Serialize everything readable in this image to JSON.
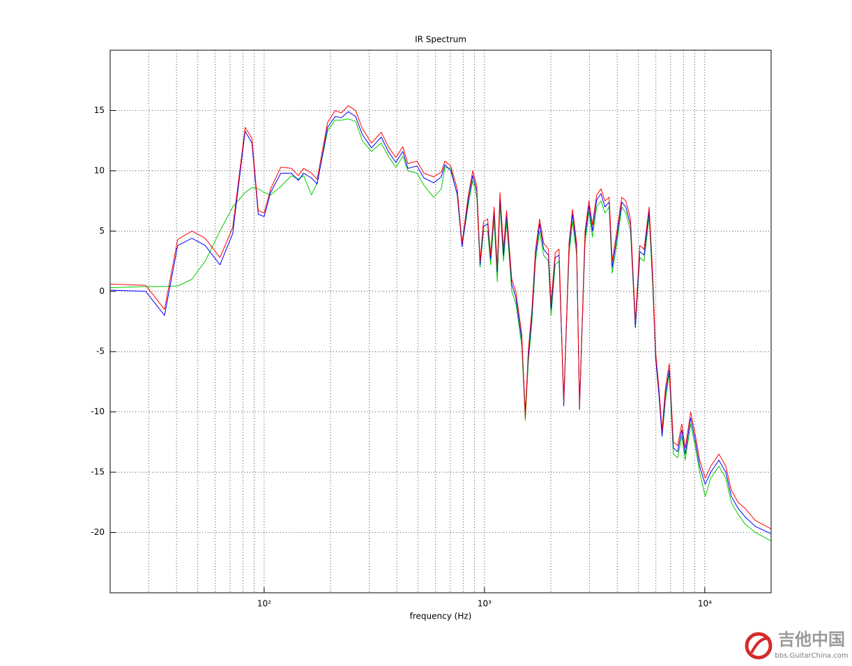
{
  "chart_data": {
    "type": "line",
    "title": "IR Spectrum",
    "x_label": "frequency (Hz)",
    "x": [
      20,
      29,
      35.3,
      40.5,
      47,
      54,
      63,
      72,
      82,
      88,
      94,
      100,
      107,
      119,
      133,
      143,
      151,
      164,
      174,
      194,
      210,
      224,
      241,
      260,
      279,
      307,
      340,
      366,
      396,
      426,
      449,
      494,
      531,
      588,
      637,
      661,
      703,
      752,
      791,
      845,
      885,
      923,
      955,
      990,
      1034,
      1066,
      1106,
      1143,
      1176,
      1220,
      1260,
      1330,
      1388,
      1476,
      1532,
      1580,
      1642,
      1705,
      1780,
      1855,
      1950,
      2006,
      2093,
      2180,
      2290,
      2420,
      2510,
      2620,
      2700,
      2860,
      2980,
      3090,
      3230,
      3380,
      3520,
      3680,
      3800,
      3990,
      4200,
      4380,
      4600,
      4840,
      5070,
      5300,
      5590,
      5800,
      5980,
      6190,
      6400,
      6630,
      6900,
      7200,
      7530,
      7860,
      8150,
      8630,
      9070,
      9480,
      10040,
      10640,
      11590,
      12450,
      13190,
      14170,
      15230,
      16960,
      20000
    ],
    "series": [
      {
        "color": "#ff0000",
        "values": [
          0.6,
          0.5,
          -1.5,
          4.3,
          5.0,
          4.4,
          2.8,
          5.3,
          13.6,
          12.7,
          6.7,
          6.5,
          8.5,
          10.3,
          10.2,
          9.6,
          10.2,
          9.8,
          9.3,
          14.0,
          15.0,
          14.8,
          15.4,
          15.0,
          13.5,
          12.3,
          13.2,
          12.0,
          11.1,
          12.0,
          10.6,
          10.8,
          9.8,
          9.5,
          9.9,
          10.8,
          10.4,
          8.5,
          4.0,
          8.0,
          10.0,
          8.7,
          2.5,
          5.8,
          6.0,
          3.0,
          7.0,
          2.0,
          8.2,
          3.5,
          6.7,
          1.0,
          0.0,
          -3.5,
          -10.5,
          -5.0,
          -1.5,
          3.5,
          6.0,
          4.0,
          3.5,
          -1.0,
          3.2,
          3.5,
          -9.2,
          4.0,
          6.8,
          4.0,
          -9.5,
          5.0,
          7.5,
          5.5,
          8.0,
          8.5,
          7.5,
          7.8,
          2.5,
          5.0,
          7.8,
          7.5,
          6.0,
          -2.5,
          3.8,
          3.5,
          7.0,
          1.5,
          -5.0,
          -8.0,
          -11.5,
          -8.0,
          -6.0,
          -12.5,
          -12.8,
          -11.0,
          -13.0,
          -10.0,
          -12.0,
          -14.0,
          -15.5,
          -14.5,
          -13.5,
          -14.5,
          -16.5,
          -17.5,
          -18.0,
          -19.0,
          -19.7
        ]
      },
      {
        "color": "#0000ff",
        "values": [
          0.1,
          0.0,
          -2.0,
          3.8,
          4.4,
          3.8,
          2.2,
          4.8,
          13.3,
          12.3,
          6.4,
          6.2,
          8.2,
          9.8,
          9.8,
          9.2,
          9.8,
          9.4,
          8.9,
          13.6,
          14.5,
          14.4,
          14.9,
          14.5,
          13.0,
          11.9,
          12.8,
          11.6,
          10.7,
          11.6,
          10.2,
          10.4,
          9.4,
          9.0,
          9.5,
          10.5,
          10.0,
          8.1,
          3.7,
          7.6,
          9.6,
          8.3,
          2.2,
          5.4,
          5.6,
          2.7,
          6.6,
          1.6,
          7.8,
          3.0,
          6.3,
          0.6,
          -0.5,
          -4.0,
          -10.0,
          -5.5,
          -2.0,
          3.0,
          5.6,
          3.5,
          3.0,
          -1.5,
          2.8,
          3.0,
          -9.5,
          3.6,
          6.4,
          3.5,
          -9.8,
          4.5,
          7.1,
          5.0,
          7.6,
          8.1,
          7.0,
          7.4,
          2.0,
          4.5,
          7.4,
          7.0,
          5.5,
          -3.0,
          3.3,
          3.0,
          6.6,
          1.0,
          -5.5,
          -8.5,
          -12.0,
          -8.5,
          -6.5,
          -13.0,
          -13.3,
          -11.5,
          -13.5,
          -10.5,
          -12.5,
          -14.5,
          -16.0,
          -15.0,
          -14.0,
          -15.0,
          -17.0,
          -18.0,
          -18.7,
          -19.5,
          -20.1
        ]
      },
      {
        "color": "#00cc00",
        "values": [
          0.3,
          0.4,
          0.4,
          0.45,
          1.0,
          2.5,
          5.0,
          7.0,
          8.2,
          8.6,
          8.5,
          8.2,
          8.0,
          8.7,
          9.6,
          9.3,
          9.6,
          8.0,
          9.0,
          13.3,
          14.2,
          14.2,
          14.3,
          14.1,
          12.5,
          11.6,
          12.3,
          11.2,
          10.3,
          11.2,
          10.0,
          9.8,
          8.8,
          7.8,
          8.5,
          10.3,
          10.2,
          8.0,
          3.8,
          7.2,
          9.2,
          7.8,
          2.0,
          5.0,
          5.0,
          2.2,
          6.0,
          0.8,
          7.2,
          2.5,
          5.8,
          0.0,
          -1.0,
          -4.5,
          -10.7,
          -6.0,
          -2.5,
          2.5,
          5.0,
          3.0,
          2.5,
          -2.0,
          2.2,
          2.5,
          -8.8,
          3.0,
          5.8,
          3.0,
          -9.2,
          4.0,
          6.6,
          4.5,
          7.0,
          7.5,
          6.5,
          7.0,
          1.5,
          4.0,
          7.0,
          6.5,
          5.0,
          -3.0,
          2.8,
          2.5,
          6.2,
          0.5,
          -5.5,
          -8.5,
          -12.0,
          -9.0,
          -6.8,
          -13.5,
          -13.8,
          -12.0,
          -14.0,
          -11.0,
          -13.0,
          -15.0,
          -17.0,
          -15.5,
          -14.5,
          -15.5,
          -17.5,
          -18.5,
          -19.3,
          -20.0,
          -20.7
        ]
      }
    ],
    "x_log": true,
    "xlim": [
      20,
      20000
    ],
    "ylim": [
      -25,
      20
    ],
    "xticks": [
      {
        "value": 100,
        "label": "10²"
      },
      {
        "value": 1000,
        "label": "10³"
      },
      {
        "value": 10000,
        "label": "10⁴"
      }
    ],
    "xminorticks": [
      30,
      40,
      50,
      60,
      70,
      80,
      90,
      200,
      300,
      400,
      500,
      600,
      700,
      800,
      900,
      2000,
      3000,
      4000,
      5000,
      6000,
      7000,
      8000,
      9000
    ],
    "yticks": [
      -20,
      -15,
      -10,
      -5,
      0,
      5,
      10,
      15
    ],
    "grid": true
  },
  "watermark": {
    "brand": "吉他中国",
    "url": "bbs.GuitarChina.com"
  }
}
